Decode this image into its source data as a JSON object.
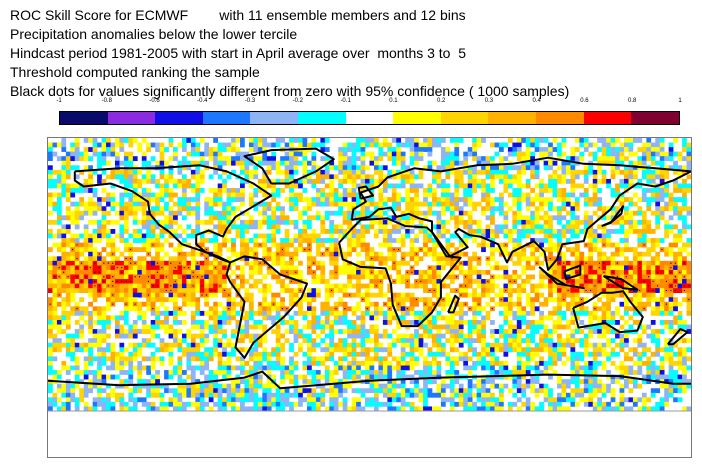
{
  "title_lines": [
    "ROC Skill Score for ECMWF        with 11 ensemble members and 12 bins",
    "Precipitation anomalies below the lower tercile",
    "Hindcast period 1981-2005 with start in April average over  months 3 to  5",
    "Threshold computed ranking the sample",
    "Black dots for values significantly different from zero with 95% confidence ( 1000 samples)"
  ],
  "colorbar": {
    "tick_labels": [
      "-1",
      "-0.8",
      "-0.6",
      "-0.4",
      "-0.3",
      "-0.2",
      "-0.1",
      "0.1",
      "0.2",
      "0.3",
      "0.4",
      "0.6",
      "0.8",
      "1"
    ],
    "colors": [
      "#0a0a6a",
      "#8a2be2",
      "#1010e6",
      "#1e78ff",
      "#8fb4f5",
      "#00ffff",
      "#ffffff",
      "#ffff00",
      "#ffd400",
      "#ffb300",
      "#ff8a00",
      "#ff0000",
      "#800030"
    ]
  },
  "map": {
    "coastline_color": "#000000",
    "dot_color": "#000000"
  }
}
